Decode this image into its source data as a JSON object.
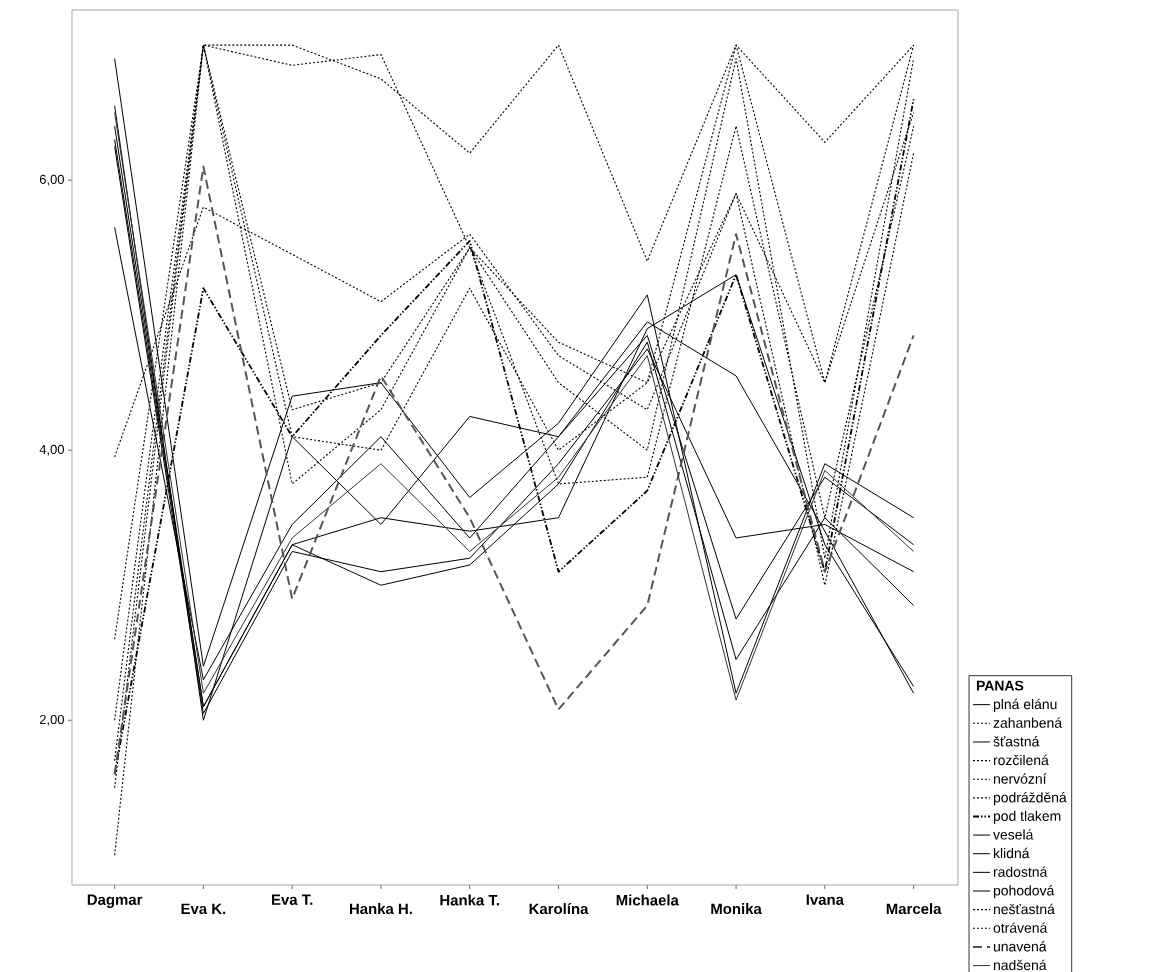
{
  "chart_data": {
    "type": "line",
    "categories": [
      "Dagmar",
      "Eva K.",
      "Eva T.",
      "Hanka H.",
      "Hanka T.",
      "Karolína",
      "Michaela",
      "Monika",
      "Ivana",
      "Marcela"
    ],
    "ylim": [
      0.78,
      7.26
    ],
    "yticks": [
      {
        "value": 2,
        "label": "2,00"
      },
      {
        "value": 4,
        "label": "4,00"
      },
      {
        "value": 6,
        "label": "6,00"
      }
    ],
    "legend": "right",
    "legend_title": "PANAS",
    "series": [
      {
        "name": "plná elánu",
        "color": "#000000",
        "line_style": "solid",
        "values": [
          6.9,
          2.4,
          4.4,
          4.5,
          3.65,
          4.2,
          5.15,
          2.2,
          3.9,
          3.5
        ]
      },
      {
        "name": "zahanbená",
        "color": "#000000",
        "line_style": "dotted",
        "values": [
          3.95,
          5.8,
          5.45,
          5.1,
          5.6,
          4.7,
          4.3,
          5.9,
          4.5,
          6.5
        ]
      },
      {
        "name": "šťastná",
        "color": "#000000",
        "line_style": "solid",
        "values": [
          5.65,
          2.3,
          3.45,
          4.1,
          3.35,
          4.1,
          4.95,
          4.55,
          3.4,
          2.2
        ]
      },
      {
        "name": "rozčilená",
        "color": "#000000",
        "line_style": "dotted",
        "values": [
          2.6,
          7.0,
          7.0,
          6.75,
          6.2,
          7.0,
          5.4,
          7.0,
          6.28,
          7.0
        ]
      },
      {
        "name": "nervózní",
        "color": "#000000",
        "line_style": "dotted",
        "values": [
          2.0,
          7.0,
          6.85,
          6.93,
          5.5,
          4.8,
          4.5,
          7.0,
          4.5,
          7.0
        ]
      },
      {
        "name": "podrážděná",
        "color": "#000000",
        "line_style": "dotted",
        "values": [
          1.7,
          7.0,
          4.3,
          4.5,
          5.5,
          4.5,
          4.0,
          6.9,
          3.2,
          6.9
        ]
      },
      {
        "name": "pod tlakem",
        "color": "#000000",
        "line_style": "dashdot",
        "values": [
          1.6,
          5.2,
          4.1,
          4.85,
          5.55,
          3.1,
          3.7,
          5.3,
          3.1,
          6.6
        ]
      },
      {
        "name": "veselá",
        "color": "#000000",
        "line_style": "solid",
        "values": [
          6.55,
          2.0,
          4.1,
          3.45,
          4.25,
          4.1,
          4.85,
          2.75,
          3.8,
          3.3
        ]
      },
      {
        "name": "klidná",
        "color": "#000000",
        "line_style": "solid",
        "values": [
          6.4,
          2.1,
          3.3,
          3.5,
          3.4,
          3.5,
          4.9,
          5.3,
          3.3,
          2.25
        ]
      },
      {
        "name": "radostná",
        "color": "#000000",
        "line_style": "solid",
        "values": [
          6.3,
          2.1,
          3.3,
          3.0,
          3.15,
          3.75,
          4.8,
          2.45,
          3.5,
          2.85
        ]
      },
      {
        "name": "pohodová",
        "color": "#000000",
        "line_style": "solid",
        "values": [
          6.25,
          2.05,
          3.25,
          3.1,
          3.2,
          3.9,
          4.75,
          3.35,
          3.45,
          3.1
        ]
      },
      {
        "name": "nešťastná",
        "color": "#000000",
        "line_style": "dotted",
        "values": [
          1.0,
          7.0,
          3.75,
          4.3,
          5.5,
          3.75,
          3.8,
          6.4,
          3.5,
          6.4
        ]
      },
      {
        "name": "otrávená",
        "color": "#000000",
        "line_style": "dotted",
        "values": [
          1.5,
          7.0,
          4.1,
          4.0,
          5.2,
          4.0,
          4.5,
          5.9,
          3.0,
          6.2
        ]
      },
      {
        "name": "unavená",
        "color": "#555555",
        "line_style": "dashed",
        "values": [
          1.6,
          6.1,
          2.9,
          4.55,
          3.5,
          2.08,
          2.85,
          5.6,
          3.1,
          4.85
        ]
      },
      {
        "name": "nadšená",
        "color": "#333333",
        "line_style": "solid",
        "values": [
          6.5,
          2.2,
          3.35,
          3.9,
          3.25,
          3.8,
          4.7,
          2.15,
          3.85,
          3.25
        ]
      }
    ]
  }
}
